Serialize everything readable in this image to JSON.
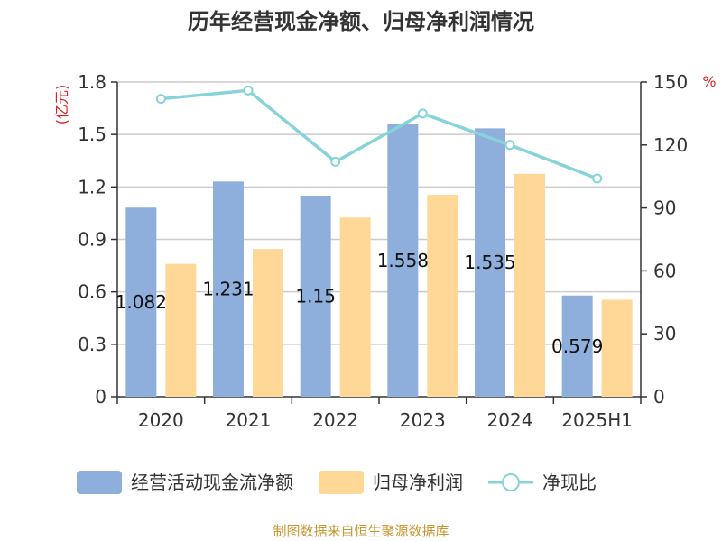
{
  "chart_data": {
    "type": "bar",
    "title": "历年经营现金净额、归母净利润情况",
    "categories": [
      "2020",
      "2021",
      "2022",
      "2023",
      "2024",
      "2025H1"
    ],
    "series": [
      {
        "name": "经营活动现金流净额",
        "type": "bar",
        "axis": "left",
        "color": "#8eaedb",
        "values": [
          1.082,
          1.231,
          1.15,
          1.558,
          1.535,
          0.579
        ],
        "labels": [
          "1.082",
          "1.231",
          "1.15",
          "1.558",
          "1.535",
          "0.579"
        ]
      },
      {
        "name": "归母净利润",
        "type": "bar",
        "axis": "left",
        "color": "#ffd898",
        "values": [
          0.76,
          0.845,
          1.025,
          1.155,
          1.275,
          0.555
        ]
      },
      {
        "name": "净现比",
        "type": "line",
        "axis": "right",
        "color": "#86d3d9",
        "values": [
          142,
          146,
          112,
          135,
          120,
          104
        ]
      }
    ],
    "y_left": {
      "label": "(亿元)",
      "min": 0,
      "max": 1.8,
      "ticks": [
        "0",
        "0.3",
        "0.6",
        "0.9",
        "1.2",
        "1.5",
        "1.8"
      ]
    },
    "y_right": {
      "label": "%",
      "min": 0,
      "max": 150,
      "ticks": [
        "0",
        "30",
        "60",
        "90",
        "120",
        "150"
      ]
    },
    "grid": true,
    "legend_position": "bottom",
    "unit_color": "#dd2222",
    "source_text": "制图数据来自恒生聚源数据库",
    "source_color": "#c9952d"
  }
}
